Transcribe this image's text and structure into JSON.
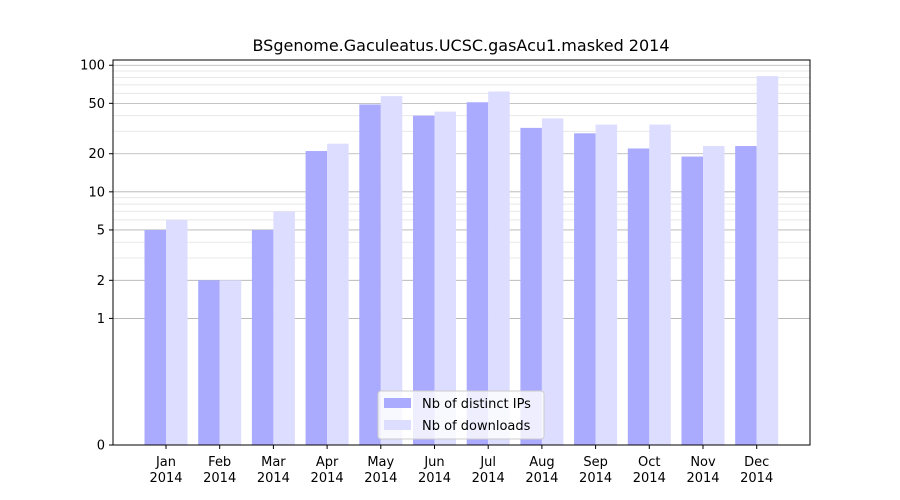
{
  "chart_data": {
    "type": "bar",
    "title": "BSgenome.Gaculeatus.UCSC.gasAcu1.masked 2014",
    "xlabel": "",
    "ylabel": "",
    "categories": [
      "Jan\n2014",
      "Feb\n2014",
      "Mar\n2014",
      "Apr\n2014",
      "May\n2014",
      "Jun\n2014",
      "Jul\n2014",
      "Aug\n2014",
      "Sep\n2014",
      "Oct\n2014",
      "Nov\n2014",
      "Dec\n2014"
    ],
    "series": [
      {
        "name": "Nb of distinct IPs",
        "color": "#aaaaff",
        "values": [
          5,
          2,
          5,
          21,
          49,
          40,
          51,
          32,
          29,
          22,
          19,
          23
        ]
      },
      {
        "name": "Nb of downloads",
        "color": "#ddddff",
        "values": [
          6,
          2,
          7,
          24,
          57,
          43,
          62,
          38,
          34,
          34,
          23,
          82
        ]
      }
    ],
    "yscale": "symlog",
    "ylim": [
      0,
      110
    ],
    "yticks": [
      0,
      1,
      2,
      5,
      10,
      20,
      50,
      100
    ],
    "ytick_labels": [
      "0",
      "1",
      "2",
      "5",
      "10",
      "20",
      "50",
      "100"
    ],
    "grid": "y",
    "legend_position": "bottom-center"
  }
}
